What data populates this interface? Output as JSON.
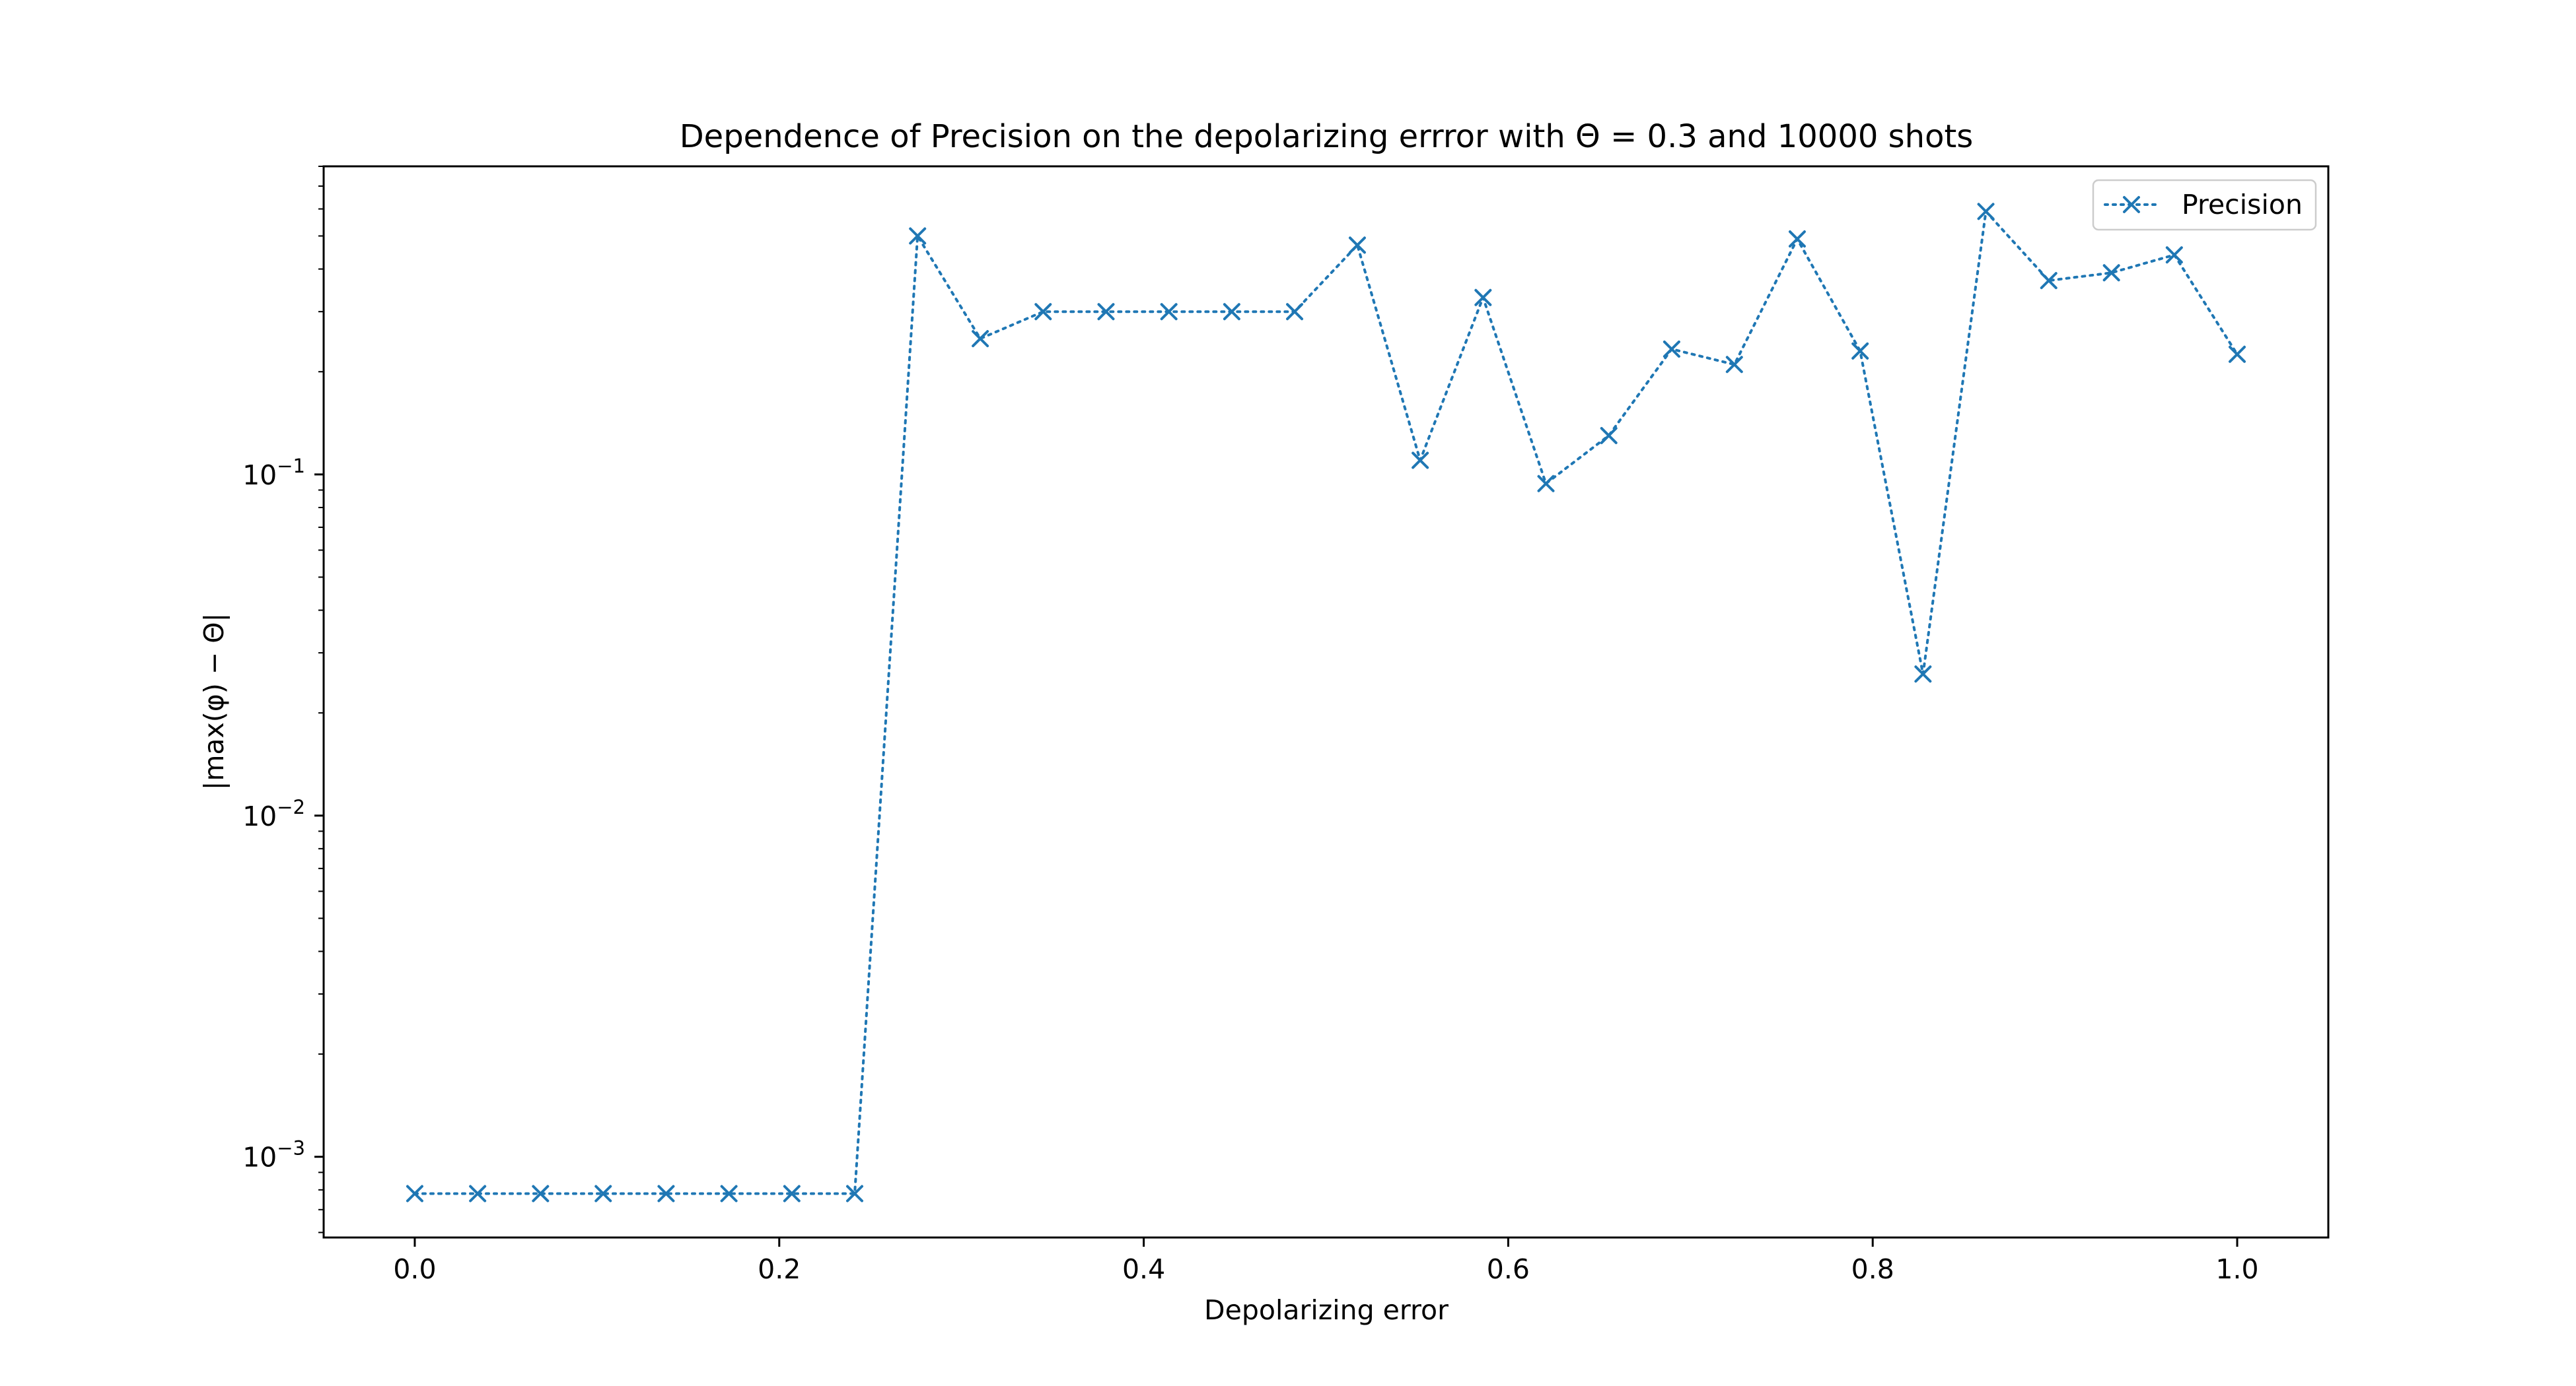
{
  "chart_data": {
    "type": "line",
    "title": "Dependence of Precision on the depolarizing errror with Θ = 0.3 and 10000 shots",
    "xlabel": "Depolarizing error",
    "ylabel": "|max(φ) − Θ|",
    "x_scale": "linear",
    "y_scale": "log",
    "xlim": [
      -0.05,
      1.05
    ],
    "ylim": [
      0.00058,
      0.8
    ],
    "x_ticks": [
      0.0,
      0.2,
      0.4,
      0.6,
      0.8,
      1.0
    ],
    "x_tick_labels": [
      "0.0",
      "0.2",
      "0.4",
      "0.6",
      "0.8",
      "1.0"
    ],
    "y_ticks": [
      {
        "value": 0.001,
        "base": "10",
        "exp": "−3"
      },
      {
        "value": 0.01,
        "base": "10",
        "exp": "−2"
      },
      {
        "value": 0.1,
        "base": "10",
        "exp": "−1"
      }
    ],
    "grid": false,
    "legend_position": "upper right",
    "series": [
      {
        "name": "Precision",
        "color": "#1f77b4",
        "line_style": "dotted",
        "marker": "x",
        "x": [
          0.0,
          0.0345,
          0.069,
          0.1034,
          0.1379,
          0.1724,
          0.2069,
          0.2414,
          0.2759,
          0.3103,
          0.3448,
          0.3793,
          0.4138,
          0.4483,
          0.4828,
          0.5172,
          0.5517,
          0.5862,
          0.6207,
          0.6552,
          0.6897,
          0.7241,
          0.7586,
          0.7931,
          0.8276,
          0.8621,
          0.8966,
          0.931,
          0.9655,
          1.0
        ],
        "y": [
          0.00078,
          0.00078,
          0.00078,
          0.00078,
          0.00078,
          0.00078,
          0.00078,
          0.00078,
          0.5,
          0.25,
          0.3,
          0.3,
          0.3,
          0.3,
          0.3,
          0.47,
          0.11,
          0.33,
          0.094,
          0.13,
          0.233,
          0.21,
          0.49,
          0.23,
          0.026,
          0.59,
          0.37,
          0.39,
          0.44,
          0.225
        ]
      }
    ]
  }
}
